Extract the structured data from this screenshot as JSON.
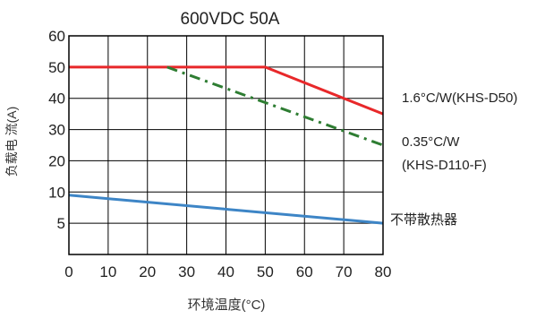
{
  "chart_data": {
    "type": "line",
    "title": "600VDC 50A",
    "xlabel": "环境温度(°C)",
    "ylabel": "负载电 流(A)",
    "xlim": [
      0,
      80
    ],
    "x_ticks": [
      "0",
      "10",
      "20",
      "30",
      "40",
      "50",
      "60",
      "70",
      "80"
    ],
    "y_ticks": [
      "5",
      "10",
      "20",
      "30",
      "40",
      "50",
      "60"
    ],
    "grid": true,
    "series": [
      {
        "name": "1.6°C/W(KHS-D50)",
        "color": "#e8282a",
        "style": "solid",
        "points": [
          [
            0,
            50
          ],
          [
            50,
            50
          ],
          [
            80,
            35
          ]
        ]
      },
      {
        "name": "0.35°C/W (KHS-D110-F)",
        "color": "#2e7d32",
        "style": "dash-dot",
        "points": [
          [
            25,
            50
          ],
          [
            80,
            25
          ]
        ]
      },
      {
        "name": "不带散热器",
        "color": "#3d85c6",
        "style": "solid",
        "points": [
          [
            0,
            9.5
          ],
          [
            80,
            5
          ]
        ]
      }
    ],
    "annotations": [
      {
        "text": "1.6°C/W(KHS-D50)",
        "series": 0
      },
      {
        "text": "0.35°C/W",
        "series": 1
      },
      {
        "text": "(KHS-D110-F)",
        "series": 1
      },
      {
        "text": "不带散热器",
        "series": 2
      }
    ]
  }
}
